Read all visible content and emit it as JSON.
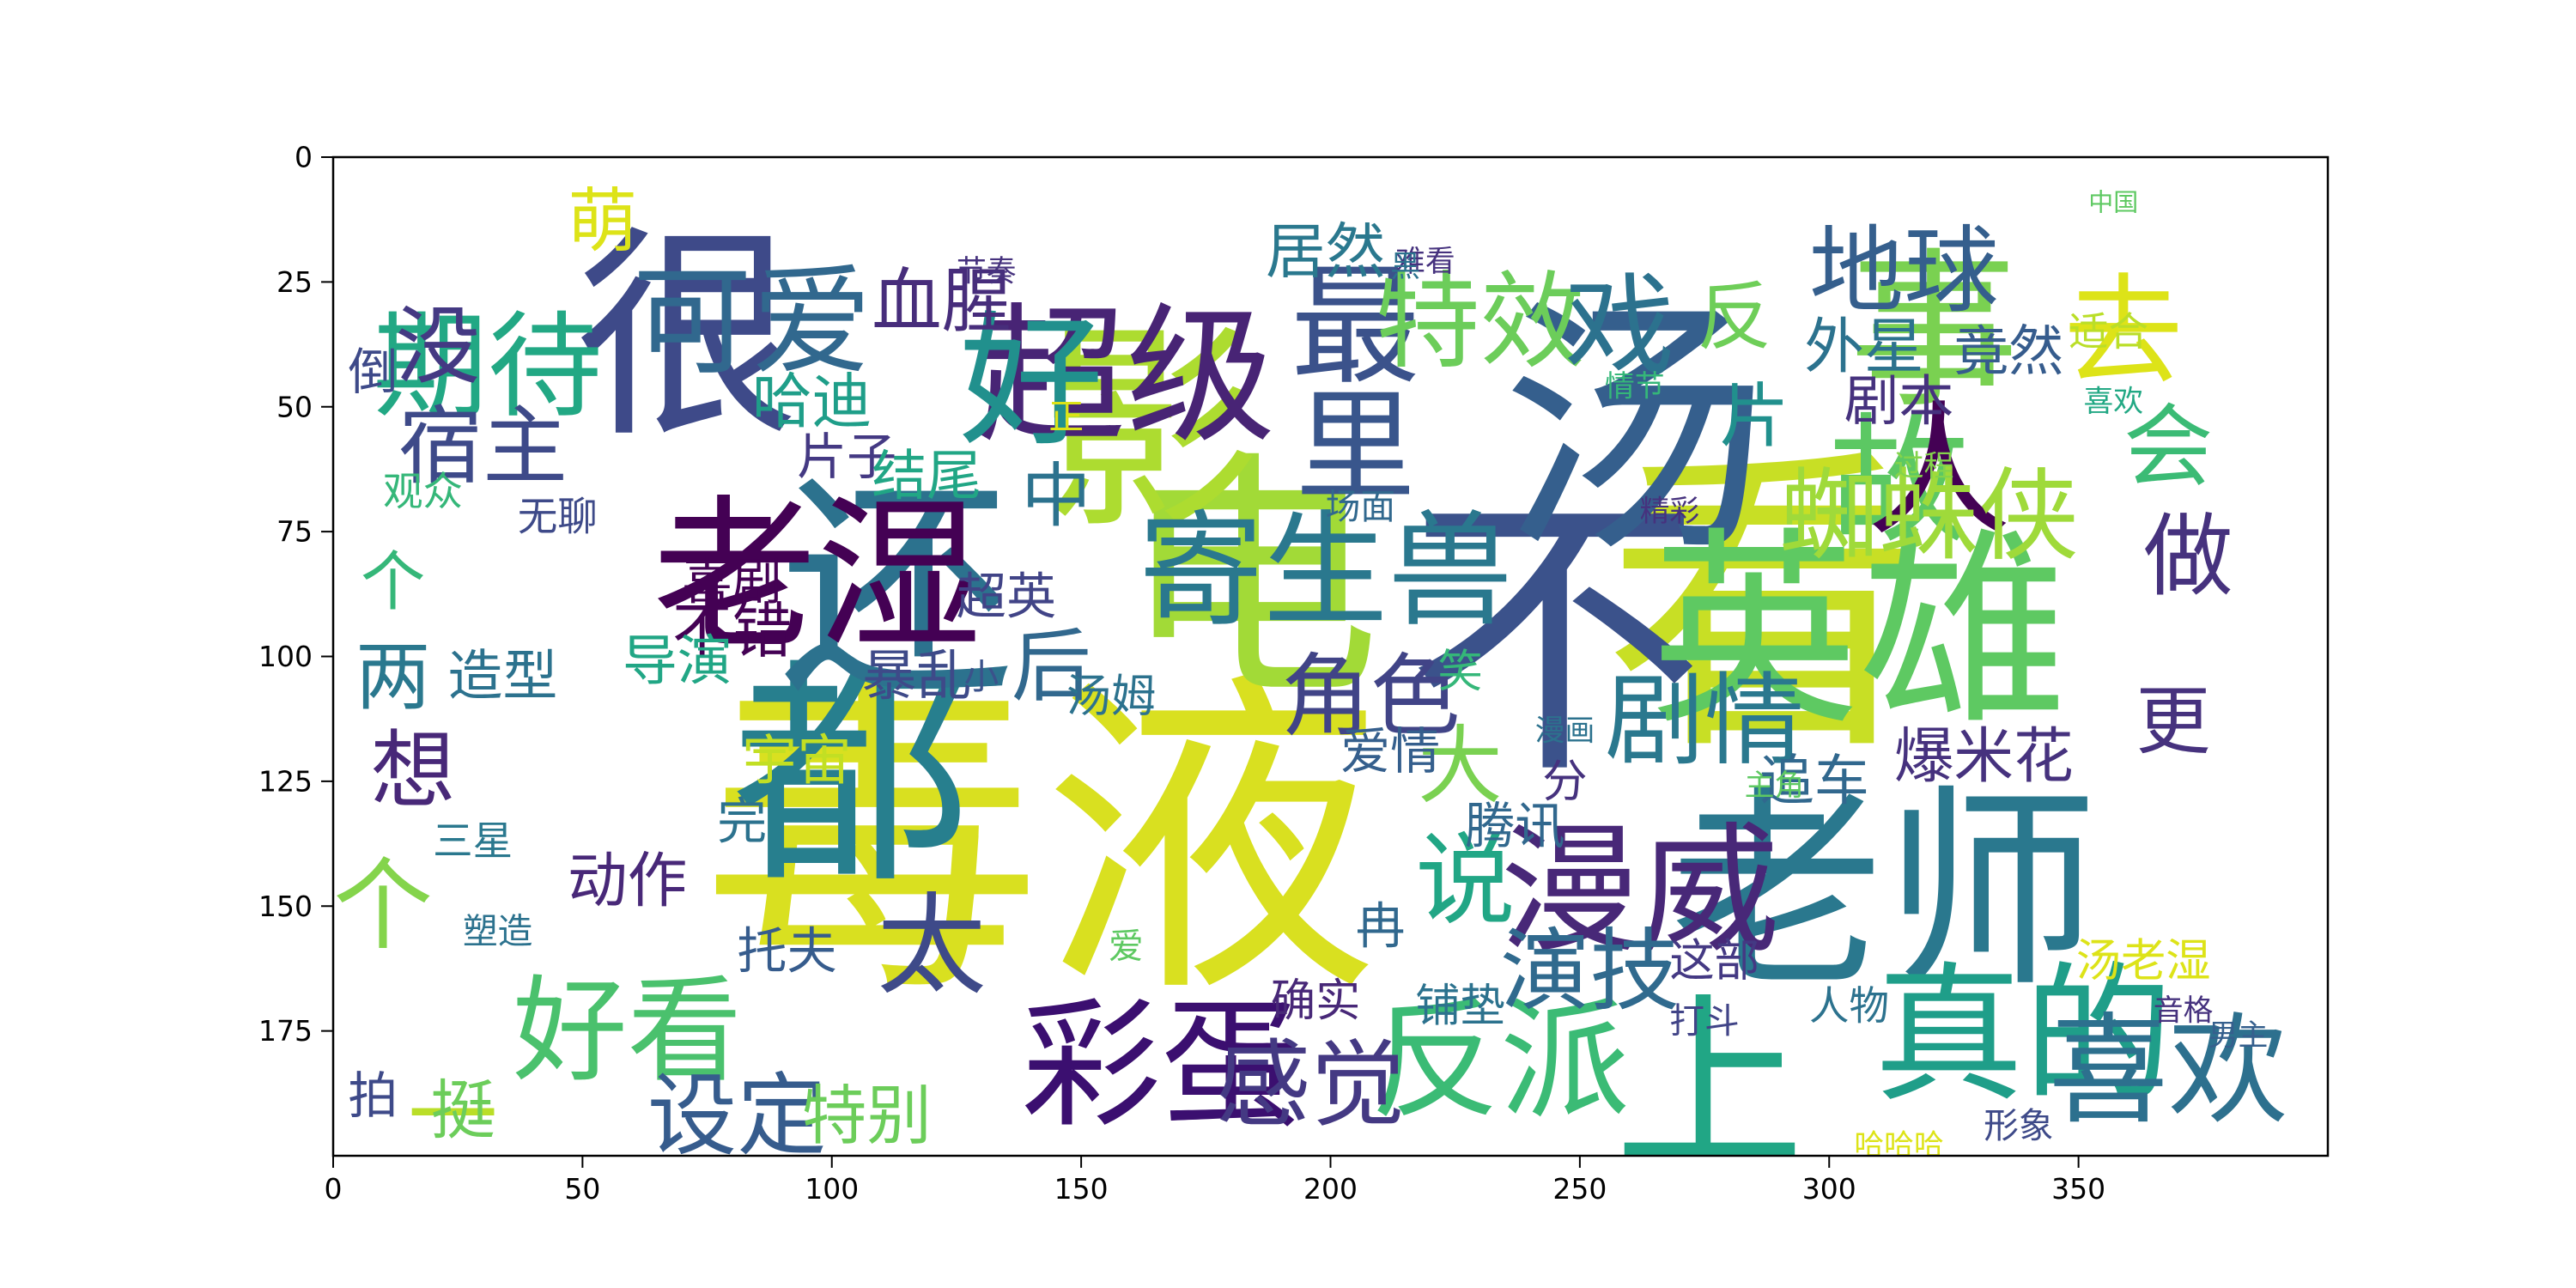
{
  "chart_data": {
    "type": "wordcloud",
    "title": "",
    "xlabel": "",
    "ylabel": "",
    "xlim": [
      0,
      400
    ],
    "ylim": [
      200,
      0
    ],
    "x_ticks": [
      0,
      50,
      100,
      150,
      200,
      250,
      300,
      350
    ],
    "y_ticks": [
      0,
      25,
      50,
      75,
      100,
      125,
      150,
      175
    ],
    "grid": false,
    "colormap": "viridis",
    "words": [
      {
        "text": "毒液",
        "x": 142,
        "y": 137,
        "size": 68,
        "color": "#d9e020"
      },
      {
        "text": "看",
        "x": 287,
        "y": 90,
        "size": 64,
        "color": "#c8df25"
      },
      {
        "text": "不",
        "x": 245,
        "y": 97,
        "size": 60,
        "color": "#3b528b"
      },
      {
        "text": "汤",
        "x": 261,
        "y": 55,
        "size": 54,
        "color": "#355f8d"
      },
      {
        "text": "电",
        "x": 184,
        "y": 85,
        "size": 52,
        "color": "#a2da37"
      },
      {
        "text": "都",
        "x": 104,
        "y": 124,
        "size": 48,
        "color": "#277f8e"
      },
      {
        "text": "还",
        "x": 113,
        "y": 87,
        "size": 47,
        "color": "#2c728e"
      },
      {
        "text": "很",
        "x": 71,
        "y": 36,
        "size": 45,
        "color": "#3e4a89"
      },
      {
        "text": "影",
        "x": 164,
        "y": 55,
        "size": 44,
        "color": "#addc30"
      },
      {
        "text": "老师",
        "x": 311,
        "y": 147,
        "size": 43,
        "color": "#2a788e"
      },
      {
        "text": "英雄",
        "x": 306,
        "y": 95,
        "size": 42,
        "color": "#5ec962"
      },
      {
        "text": "老湿",
        "x": 97,
        "y": 84,
        "size": 33,
        "color": "#440154"
      },
      {
        "text": "上",
        "x": 276,
        "y": 186,
        "size": 38,
        "color": "#21a685"
      },
      {
        "text": "真的",
        "x": 339,
        "y": 176,
        "size": 30,
        "color": "#1f9e89"
      },
      {
        "text": "事",
        "x": 321,
        "y": 35,
        "size": 34,
        "color": "#7ad151"
      },
      {
        "text": "故",
        "x": 314,
        "y": 65,
        "size": 28,
        "color": "#5cc863"
      },
      {
        "text": "人",
        "x": 322,
        "y": 63,
        "size": 29,
        "color": "#440154"
      },
      {
        "text": "漫威",
        "x": 262,
        "y": 147,
        "size": 28,
        "color": "#482878"
      },
      {
        "text": "反派",
        "x": 234,
        "y": 181,
        "size": 26,
        "color": "#3bbb75"
      },
      {
        "text": "喜欢",
        "x": 368,
        "y": 183,
        "size": 24,
        "color": "#2d708e"
      },
      {
        "text": "彩蛋",
        "x": 166,
        "y": 182,
        "size": 28,
        "color": "#3b0f70"
      },
      {
        "text": "超级",
        "x": 159,
        "y": 44,
        "size": 30,
        "color": "#482475"
      },
      {
        "text": "寄生兽",
        "x": 199,
        "y": 83,
        "size": 25,
        "color": "#2a788e"
      },
      {
        "text": "可爱",
        "x": 84,
        "y": 33,
        "size": 24,
        "color": "#31688e"
      },
      {
        "text": "期待",
        "x": 31,
        "y": 42,
        "size": 23,
        "color": "#22a884"
      },
      {
        "text": "好",
        "x": 140,
        "y": 45,
        "size": 29,
        "color": "#21908d"
      },
      {
        "text": "最",
        "x": 205,
        "y": 34,
        "size": 26,
        "color": "#3b528b"
      },
      {
        "text": "里",
        "x": 205,
        "y": 58,
        "size": 24,
        "color": "#39568c"
      },
      {
        "text": "好看",
        "x": 59,
        "y": 175,
        "size": 23,
        "color": "#4ac16d"
      },
      {
        "text": "蜘蛛侠",
        "x": 320,
        "y": 72,
        "size": 20,
        "color": "#9fda3a"
      },
      {
        "text": "剧情",
        "x": 275,
        "y": 113,
        "size": 20,
        "color": "#2a788e"
      },
      {
        "text": "特效",
        "x": 230,
        "y": 33,
        "size": 21,
        "color": "#6ccd5a"
      },
      {
        "text": "戏",
        "x": 258,
        "y": 34,
        "size": 22,
        "color": "#2c728e"
      },
      {
        "text": "去",
        "x": 359,
        "y": 35,
        "size": 24,
        "color": "#dde318"
      },
      {
        "text": "地球",
        "x": 315,
        "y": 23,
        "size": 19,
        "color": "#355f8d"
      },
      {
        "text": "会",
        "x": 368,
        "y": 58,
        "size": 18,
        "color": "#3bbb75"
      },
      {
        "text": "做",
        "x": 372,
        "y": 80,
        "size": 18,
        "color": "#46327e"
      },
      {
        "text": "感觉",
        "x": 196,
        "y": 186,
        "size": 19,
        "color": "#443983"
      },
      {
        "text": "设定",
        "x": 81,
        "y": 192,
        "size": 18,
        "color": "#365c8d"
      },
      {
        "text": "角色",
        "x": 208,
        "y": 108,
        "size": 18,
        "color": "#414487"
      },
      {
        "text": "太",
        "x": 120,
        "y": 158,
        "size": 22,
        "color": "#3e4a89"
      },
      {
        "text": "说",
        "x": 227,
        "y": 145,
        "size": 20,
        "color": "#21a685"
      },
      {
        "text": "大",
        "x": 226,
        "y": 122,
        "size": 17,
        "color": "#7ad151"
      },
      {
        "text": "演技",
        "x": 252,
        "y": 163,
        "size": 18,
        "color": "#306a8e"
      },
      {
        "text": "没",
        "x": 21,
        "y": 38,
        "size": 17,
        "color": "#443983"
      },
      {
        "text": "宿主",
        "x": 30,
        "y": 58,
        "size": 17,
        "color": "#3e4a89"
      },
      {
        "text": "萌",
        "x": 54,
        "y": 13,
        "size": 14,
        "color": "#dde318"
      },
      {
        "text": "血腥",
        "x": 122,
        "y": 29,
        "size": 14,
        "color": "#472d7b"
      },
      {
        "text": "居然",
        "x": 199,
        "y": 19,
        "size": 12,
        "color": "#2a788e"
      },
      {
        "text": "哈迪",
        "x": 96,
        "y": 49,
        "size": 12,
        "color": "#1f9e89"
      },
      {
        "text": "中",
        "x": 145,
        "y": 68,
        "size": 14,
        "color": "#2c728e"
      },
      {
        "text": "片",
        "x": 285,
        "y": 52,
        "size": 14,
        "color": "#21908d"
      },
      {
        "text": "反",
        "x": 281,
        "y": 32,
        "size": 15,
        "color": "#6ece58"
      },
      {
        "text": "外星",
        "x": 307,
        "y": 38,
        "size": 12,
        "color": "#2c728e"
      },
      {
        "text": "竟然",
        "x": 336,
        "y": 39,
        "size": 11,
        "color": "#365c8d"
      },
      {
        "text": "剧本",
        "x": 314,
        "y": 49,
        "size": 11,
        "color": "#46327e"
      },
      {
        "text": "适合",
        "x": 356,
        "y": 35,
        "size": 8,
        "color": "#bade28"
      },
      {
        "text": "片子",
        "x": 103,
        "y": 60,
        "size": 10,
        "color": "#443983"
      },
      {
        "text": "结尾",
        "x": 119,
        "y": 64,
        "size": 11,
        "color": "#21a685"
      },
      {
        "text": "喜剧",
        "x": 80,
        "y": 85,
        "size": 10,
        "color": "#440154"
      },
      {
        "text": "不错",
        "x": 80,
        "y": 95,
        "size": 12,
        "color": "#440154"
      },
      {
        "text": "两",
        "x": 12,
        "y": 104,
        "size": 15,
        "color": "#2a788e"
      },
      {
        "text": "个",
        "x": 12,
        "y": 85,
        "size": 13,
        "color": "#35b779"
      },
      {
        "text": "想",
        "x": 16,
        "y": 123,
        "size": 17,
        "color": "#482878"
      },
      {
        "text": "个",
        "x": 10,
        "y": 150,
        "size": 20,
        "color": "#84d44b"
      },
      {
        "text": "造型",
        "x": 34,
        "y": 104,
        "size": 11,
        "color": "#2c728e"
      },
      {
        "text": "导演",
        "x": 69,
        "y": 101,
        "size": 11,
        "color": "#21a685"
      },
      {
        "text": "宇宙",
        "x": 93,
        "y": 121,
        "size": 11,
        "color": "#c2df23"
      },
      {
        "text": "超英",
        "x": 135,
        "y": 88,
        "size": 10,
        "color": "#414487"
      },
      {
        "text": "暴乱",
        "x": 117,
        "y": 104,
        "size": 11,
        "color": "#3e4a89"
      },
      {
        "text": "后",
        "x": 144,
        "y": 102,
        "size": 16,
        "color": "#31688e"
      },
      {
        "text": "汤姆",
        "x": 156,
        "y": 108,
        "size": 9,
        "color": "#2c728e"
      },
      {
        "text": "爱情",
        "x": 212,
        "y": 119,
        "size": 10,
        "color": "#355f8d"
      },
      {
        "text": "笑",
        "x": 226,
        "y": 103,
        "size": 9,
        "color": "#35b779"
      },
      {
        "text": "腾讯",
        "x": 237,
        "y": 134,
        "size": 10,
        "color": "#31688e"
      },
      {
        "text": "追车",
        "x": 297,
        "y": 125,
        "size": 11,
        "color": "#31688e"
      },
      {
        "text": "爆米花",
        "x": 331,
        "y": 120,
        "size": 12,
        "color": "#46327e"
      },
      {
        "text": "更",
        "x": 369,
        "y": 113,
        "size": 15,
        "color": "#46327e"
      },
      {
        "text": "动作",
        "x": 59,
        "y": 145,
        "size": 12,
        "color": "#482878"
      },
      {
        "text": "完",
        "x": 82,
        "y": 133,
        "size": 10,
        "color": "#2c728e"
      },
      {
        "text": "三星",
        "x": 28,
        "y": 137,
        "size": 8,
        "color": "#2a788e"
      },
      {
        "text": "一",
        "x": 24,
        "y": 192,
        "size": 18,
        "color": "#bade28"
      },
      {
        "text": "挺",
        "x": 26,
        "y": 191,
        "size": 13,
        "color": "#6ccd5a"
      },
      {
        "text": "托夫",
        "x": 91,
        "y": 159,
        "size": 10,
        "color": "#365c8d"
      },
      {
        "text": "特别",
        "x": 107,
        "y": 192,
        "size": 13,
        "color": "#6ccd5a"
      },
      {
        "text": "冉",
        "x": 210,
        "y": 154,
        "size": 10,
        "color": "#31688e"
      },
      {
        "text": "这部",
        "x": 277,
        "y": 161,
        "size": 9,
        "color": "#443983"
      },
      {
        "text": "确实",
        "x": 197,
        "y": 169,
        "size": 9,
        "color": "#482878"
      },
      {
        "text": "铺垫",
        "x": 226,
        "y": 170,
        "size": 9,
        "color": "#2c728e"
      },
      {
        "text": "汤老湿",
        "x": 363,
        "y": 161,
        "size": 9,
        "color": "#dde318"
      },
      {
        "text": "人物",
        "x": 304,
        "y": 170,
        "size": 8,
        "color": "#2c728e"
      },
      {
        "text": "分",
        "x": 247,
        "y": 125,
        "size": 9,
        "color": "#46327e"
      },
      {
        "text": "观众",
        "x": 18,
        "y": 67,
        "size": 8,
        "color": "#35b779"
      },
      {
        "text": "无聊",
        "x": 45,
        "y": 72,
        "size": 8,
        "color": "#3e4a89"
      },
      {
        "text": "倒",
        "x": 8,
        "y": 43,
        "size": 10,
        "color": "#3e4a89"
      },
      {
        "text": "拍",
        "x": 8,
        "y": 188,
        "size": 10,
        "color": "#3e4a89"
      },
      {
        "text": "场面",
        "x": 206,
        "y": 70,
        "size": 7,
        "color": "#31688e"
      },
      {
        "text": "塑造",
        "x": 33,
        "y": 155,
        "size": 7,
        "color": "#2c728e"
      },
      {
        "text": "打斗",
        "x": 275,
        "y": 173,
        "size": 7,
        "color": "#414487"
      },
      {
        "text": "形象",
        "x": 338,
        "y": 194,
        "size": 7,
        "color": "#3e4a89"
      },
      {
        "text": "男主",
        "x": 382,
        "y": 176,
        "size": 6,
        "color": "#355f8d"
      },
      {
        "text": "主角",
        "x": 289,
        "y": 126,
        "size": 6,
        "color": "#5ec962"
      },
      {
        "text": "漫画",
        "x": 247,
        "y": 115,
        "size": 6,
        "color": "#2c728e"
      },
      {
        "text": "过程",
        "x": 319,
        "y": 62,
        "size": 6,
        "color": "#84d44b"
      },
      {
        "text": "精彩",
        "x": 268,
        "y": 71,
        "size": 6,
        "color": "#46327e"
      },
      {
        "text": "情节",
        "x": 261,
        "y": 46,
        "size": 6,
        "color": "#35b779"
      },
      {
        "text": "难看",
        "x": 219,
        "y": 21,
        "size": 6,
        "color": "#46327e"
      },
      {
        "text": "喜欢",
        "x": 357,
        "y": 49,
        "size": 6,
        "color": "#22a884"
      },
      {
        "text": "节奏",
        "x": 131,
        "y": 23,
        "size": 6,
        "color": "#46327e"
      },
      {
        "text": "正",
        "x": 147,
        "y": 52,
        "size": 7,
        "color": "#dde318"
      },
      {
        "text": "小",
        "x": 130,
        "y": 104,
        "size": 7,
        "color": "#3b528b"
      },
      {
        "text": "爱",
        "x": 159,
        "y": 158,
        "size": 7,
        "color": "#5ec962"
      },
      {
        "text": "黑",
        "x": 215,
        "y": 22,
        "size": 6,
        "color": "#2c728e"
      },
      {
        "text": "中国",
        "x": 357,
        "y": 9,
        "size": 5,
        "color": "#5ec962"
      },
      {
        "text": "哈哈哈",
        "x": 314,
        "y": 198,
        "size": 6,
        "color": "#dde318"
      },
      {
        "text": "音格",
        "x": 371,
        "y": 171,
        "size": 6,
        "color": "#46327e"
      }
    ]
  }
}
